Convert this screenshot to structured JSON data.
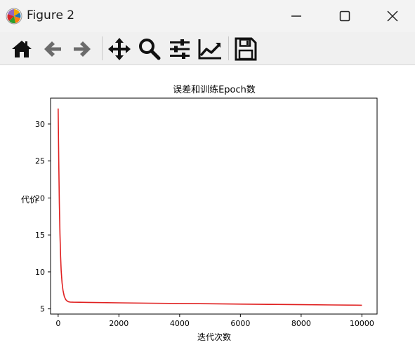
{
  "window": {
    "title": "Figure 2",
    "icons": {
      "app": "matplotlib-icon",
      "minimize": "minimize-icon",
      "maximize": "maximize-icon",
      "close": "close-icon"
    }
  },
  "toolbar": {
    "buttons": [
      {
        "name": "home-button",
        "icon": "home-icon"
      },
      {
        "name": "back-button",
        "icon": "arrow-left-icon"
      },
      {
        "name": "forward-button",
        "icon": "arrow-right-icon"
      },
      {
        "name": "pan-button",
        "icon": "move-icon"
      },
      {
        "name": "zoom-button",
        "icon": "magnifier-icon"
      },
      {
        "name": "configure-subplots-button",
        "icon": "sliders-icon"
      },
      {
        "name": "edit-axis-button",
        "icon": "line-chart-icon"
      },
      {
        "name": "save-button",
        "icon": "floppy-disk-icon"
      }
    ]
  },
  "chart_data": {
    "type": "line",
    "title": "误差和训练Epoch数",
    "xlabel": "迭代次数",
    "ylabel": "代价",
    "xlim": [
      -250,
      10500
    ],
    "ylim": [
      4.3,
      33.5
    ],
    "xticks": [
      0,
      2000,
      4000,
      6000,
      8000,
      10000
    ],
    "yticks": [
      5,
      10,
      15,
      20,
      25,
      30
    ],
    "grid": false,
    "legend": "none",
    "series": [
      {
        "color": "#e02020",
        "x": [
          0,
          20,
          40,
          60,
          80,
          100,
          130,
          160,
          200,
          250,
          300,
          350,
          400,
          500,
          700,
          1000,
          2000,
          3000,
          4000,
          5000,
          6000,
          7000,
          8000,
          9000,
          10000
        ],
        "y": [
          32.1,
          24.8,
          19.3,
          15.1,
          12.1,
          10.2,
          8.5,
          7.5,
          6.7,
          6.25,
          6.05,
          5.95,
          5.92,
          5.9,
          5.89,
          5.87,
          5.82,
          5.77,
          5.73,
          5.69,
          5.65,
          5.61,
          5.57,
          5.53,
          5.49
        ]
      }
    ]
  }
}
